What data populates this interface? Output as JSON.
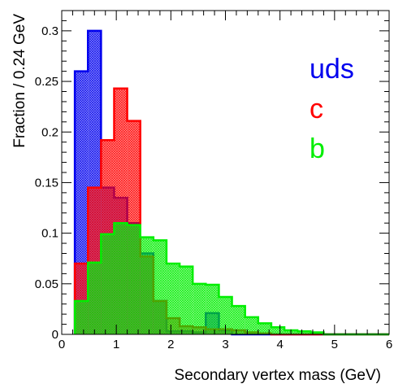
{
  "chart_data": {
    "type": "bar",
    "histogram": true,
    "title": "",
    "xlabel": "Secondary vertex mass (GeV)",
    "ylabel": "Fraction / 0.24 GeV",
    "xlim": [
      0,
      6
    ],
    "ylim": [
      0,
      0.32
    ],
    "x_ticks": [
      0,
      1,
      2,
      3,
      4,
      5,
      6
    ],
    "y_ticks": [
      0,
      0.05,
      0.1,
      0.15,
      0.2,
      0.25,
      0.3
    ],
    "y_tick_labels": [
      "0",
      "0.05",
      "0.1",
      "0.15",
      "0.2",
      "0.25",
      "0.3"
    ],
    "bin_edges": [
      0.24,
      0.48,
      0.72,
      0.96,
      1.2,
      1.44,
      1.68,
      1.92,
      2.16,
      2.4,
      2.64,
      2.88,
      3.12,
      3.36,
      3.6,
      3.84,
      4.08,
      4.32,
      4.56,
      4.8,
      5.04,
      5.28,
      5.52,
      5.76,
      6.0
    ],
    "grid": false,
    "legend_position": "top-right",
    "series": [
      {
        "name": "uds",
        "color": "#0000ee",
        "values": [
          0.26,
          0.3,
          0.145,
          0.135,
          0.11,
          0.08,
          0.033,
          0.003,
          0.003,
          0.002,
          0.021,
          0.004,
          0.0,
          0.0,
          0.0,
          0.0,
          0.0,
          0.0,
          0.0,
          0.0,
          0.0,
          0.0,
          0.0,
          0.0
        ]
      },
      {
        "name": "c",
        "color": "#ff0000",
        "values": [
          0.07,
          0.145,
          0.192,
          0.243,
          0.211,
          0.077,
          0.033,
          0.016,
          0.008,
          0.007,
          0.005,
          0.005,
          0.004,
          0.002,
          0.001,
          0.0,
          0.0,
          0.0,
          0.0,
          0.0,
          0.0,
          0.0,
          0.0,
          0.0
        ]
      },
      {
        "name": "b",
        "color": "#00ee00",
        "values": [
          0.033,
          0.071,
          0.099,
          0.11,
          0.108,
          0.096,
          0.093,
          0.07,
          0.067,
          0.05,
          0.049,
          0.037,
          0.028,
          0.017,
          0.011,
          0.007,
          0.004,
          0.003,
          0.002,
          0.0,
          0.0,
          0.0,
          0.0,
          0.0
        ]
      }
    ]
  }
}
